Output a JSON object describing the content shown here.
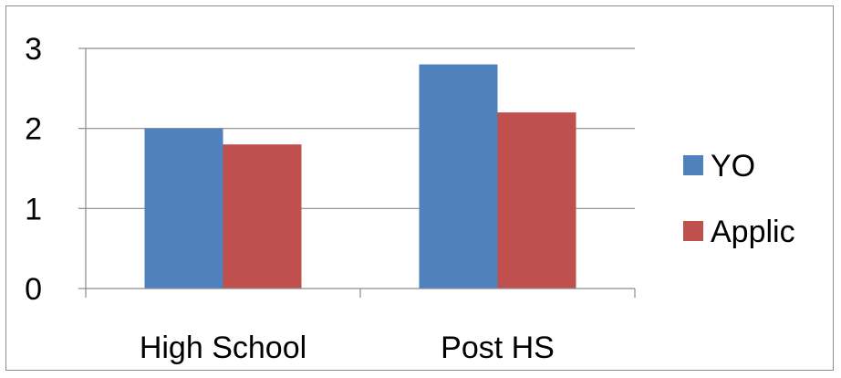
{
  "chart_data": {
    "type": "bar",
    "title": "",
    "xlabel": "",
    "ylabel": "",
    "categories": [
      "High School",
      "Post HS"
    ],
    "series": [
      {
        "name": "YO",
        "values": [
          2.0,
          2.8
        ],
        "color": "#4f81bd"
      },
      {
        "name": "Applic",
        "values": [
          1.8,
          2.2
        ],
        "color": "#c0504d"
      }
    ],
    "ylim": [
      0,
      3
    ],
    "yticks": [
      0,
      1,
      2,
      3
    ],
    "grid": true,
    "legend": "right"
  }
}
